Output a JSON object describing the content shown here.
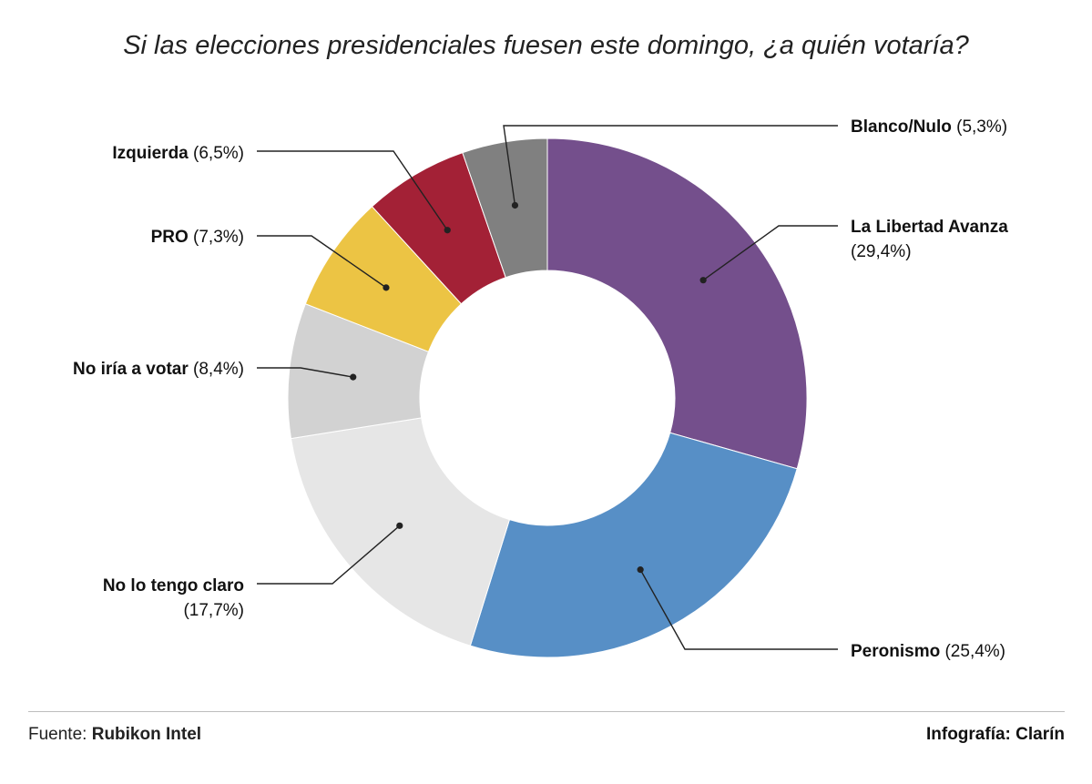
{
  "chart_data": {
    "type": "pie",
    "variant": "donut",
    "title": "Si las elecciones presidenciales fuesen este domingo, ¿a quién votaría?",
    "slices": [
      {
        "id": "lla",
        "name": "La Libertad Avanza",
        "value": 29.4,
        "label": "(29,4%)",
        "color": "#744f8c"
      },
      {
        "id": "peronismo",
        "name": "Peronismo",
        "value": 25.4,
        "label": "(25,4%)",
        "color": "#578fc6"
      },
      {
        "id": "no-claro",
        "name": "No lo tengo claro",
        "value": 17.7,
        "label": "(17,7%)",
        "color": "#e6e6e6"
      },
      {
        "id": "no-votar",
        "name": "No iría a votar",
        "value": 8.4,
        "label": "(8,4%)",
        "color": "#d2d2d2"
      },
      {
        "id": "pro",
        "name": "PRO",
        "value": 7.3,
        "label": "(7,3%)",
        "color": "#ecc444"
      },
      {
        "id": "izquierda",
        "name": "Izquierda",
        "value": 6.5,
        "label": "(6,5%)",
        "color": "#a32136"
      },
      {
        "id": "blanco",
        "name": "Blanco/Nulo",
        "value": 5.3,
        "label": "(5,3%)",
        "color": "#808080"
      }
    ]
  },
  "footer": {
    "source_prefix": "Fuente: ",
    "source_name": "Rubikon Intel",
    "credit": "Infografía: Clarín"
  }
}
